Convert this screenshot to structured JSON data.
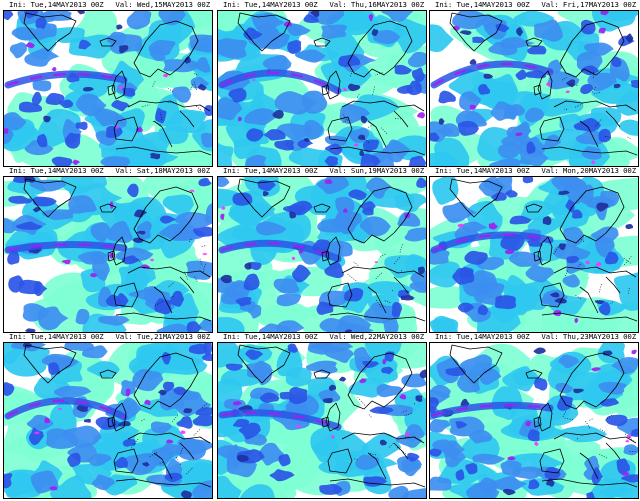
{
  "colors": {
    "none": "#ffffff",
    "light": "#7fffd4",
    "cyan": "#2fc8f0",
    "medium": "#3d8ef0",
    "blue": "#2a55e6",
    "dark": "#2030a0",
    "purple": "#a020f0",
    "magenta": "#ff30ff",
    "coastline": "#000000"
  },
  "panels": [
    {
      "ini": "Ini: Tue,14MAY2013 00Z",
      "valid": "Val: Wed,15MAY2013 00Z"
    },
    {
      "ini": "Ini: Tue,14MAY2013 00Z",
      "valid": "Val: Thu,16MAY2013 00Z"
    },
    {
      "ini": "Ini: Tue,14MAY2013 00Z",
      "valid": "Val: Fri,17MAY2013 00Z"
    },
    {
      "ini": "Ini: Tue,14MAY2013 00Z",
      "valid": "Val: Sat,18MAY2013 00Z"
    },
    {
      "ini": "Ini: Tue,14MAY2013 00Z",
      "valid": "Val: Sun,19MAY2013 00Z"
    },
    {
      "ini": "Ini: Tue,14MAY2013 00Z",
      "valid": "Val: Mon,20MAY2013 00Z"
    },
    {
      "ini": "Ini: Tue,14MAY2013 00Z",
      "valid": "Val: Tue,21MAY2013 00Z"
    },
    {
      "ini": "Ini: Tue,14MAY2013 00Z",
      "valid": "Val: Wed,22MAY2013 00Z"
    },
    {
      "ini": "Ini: Tue,14MAY2013 00Z",
      "valid": "Val: Thu,23MAY2013 00Z"
    }
  ]
}
